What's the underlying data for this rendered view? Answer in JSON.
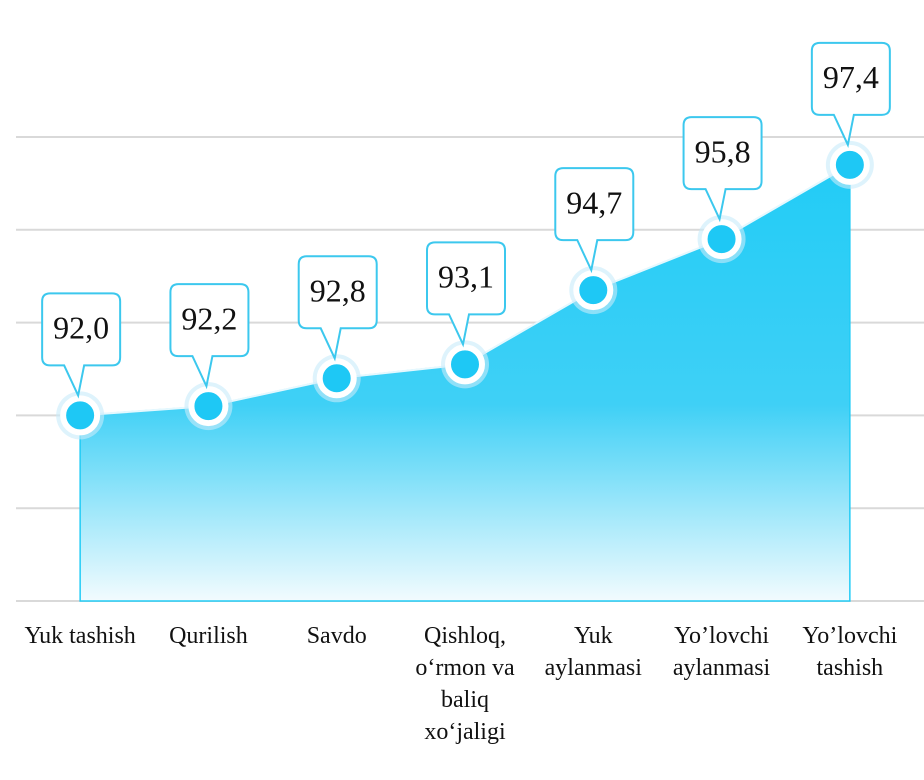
{
  "chart_data": {
    "type": "area",
    "categories": [
      "Yuk tashish",
      "Qurilish",
      "Savdo",
      "Qishloq, o‘rmon va baliq xo‘jaligi",
      "Yuk aylanmasi",
      "Yo’lovchi aylanmasi",
      "Yo’lovchi tashish"
    ],
    "values": [
      92.0,
      92.2,
      92.8,
      93.1,
      94.7,
      95.8,
      97.4
    ],
    "value_labels": [
      "92,0",
      "92,2",
      "92,8",
      "93,1",
      "94,7",
      "95,8",
      "97,4"
    ],
    "color": "#22ccf6",
    "ylim": [
      88,
      98
    ],
    "yticks": [
      88,
      90,
      92,
      94,
      96,
      98
    ],
    "grid": true
  }
}
